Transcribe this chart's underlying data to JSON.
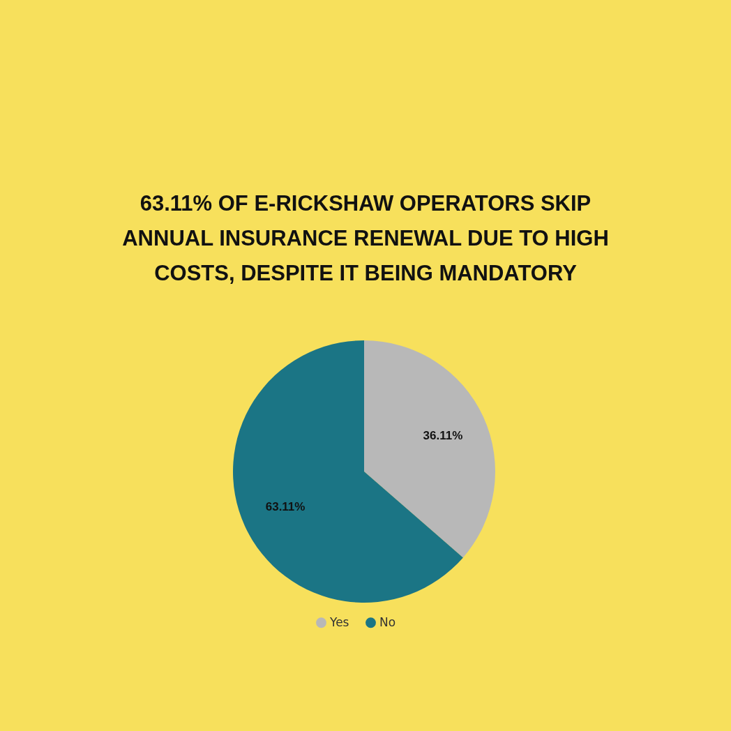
{
  "chart_data": {
    "type": "pie",
    "title": "63.11% OF E-RICKSHAW OPERATORS SKIP ANNUAL INSURANCE RENEWAL DUE TO HIGH COSTS, DESPITE IT BEING MANDATORY",
    "categories": [
      "Yes",
      "No"
    ],
    "values": [
      36.11,
      63.11
    ],
    "colors": [
      "#b8b8b8",
      "#1b7585"
    ],
    "value_labels": [
      "36.11%",
      "63.11%"
    ],
    "legend": "bottom"
  }
}
